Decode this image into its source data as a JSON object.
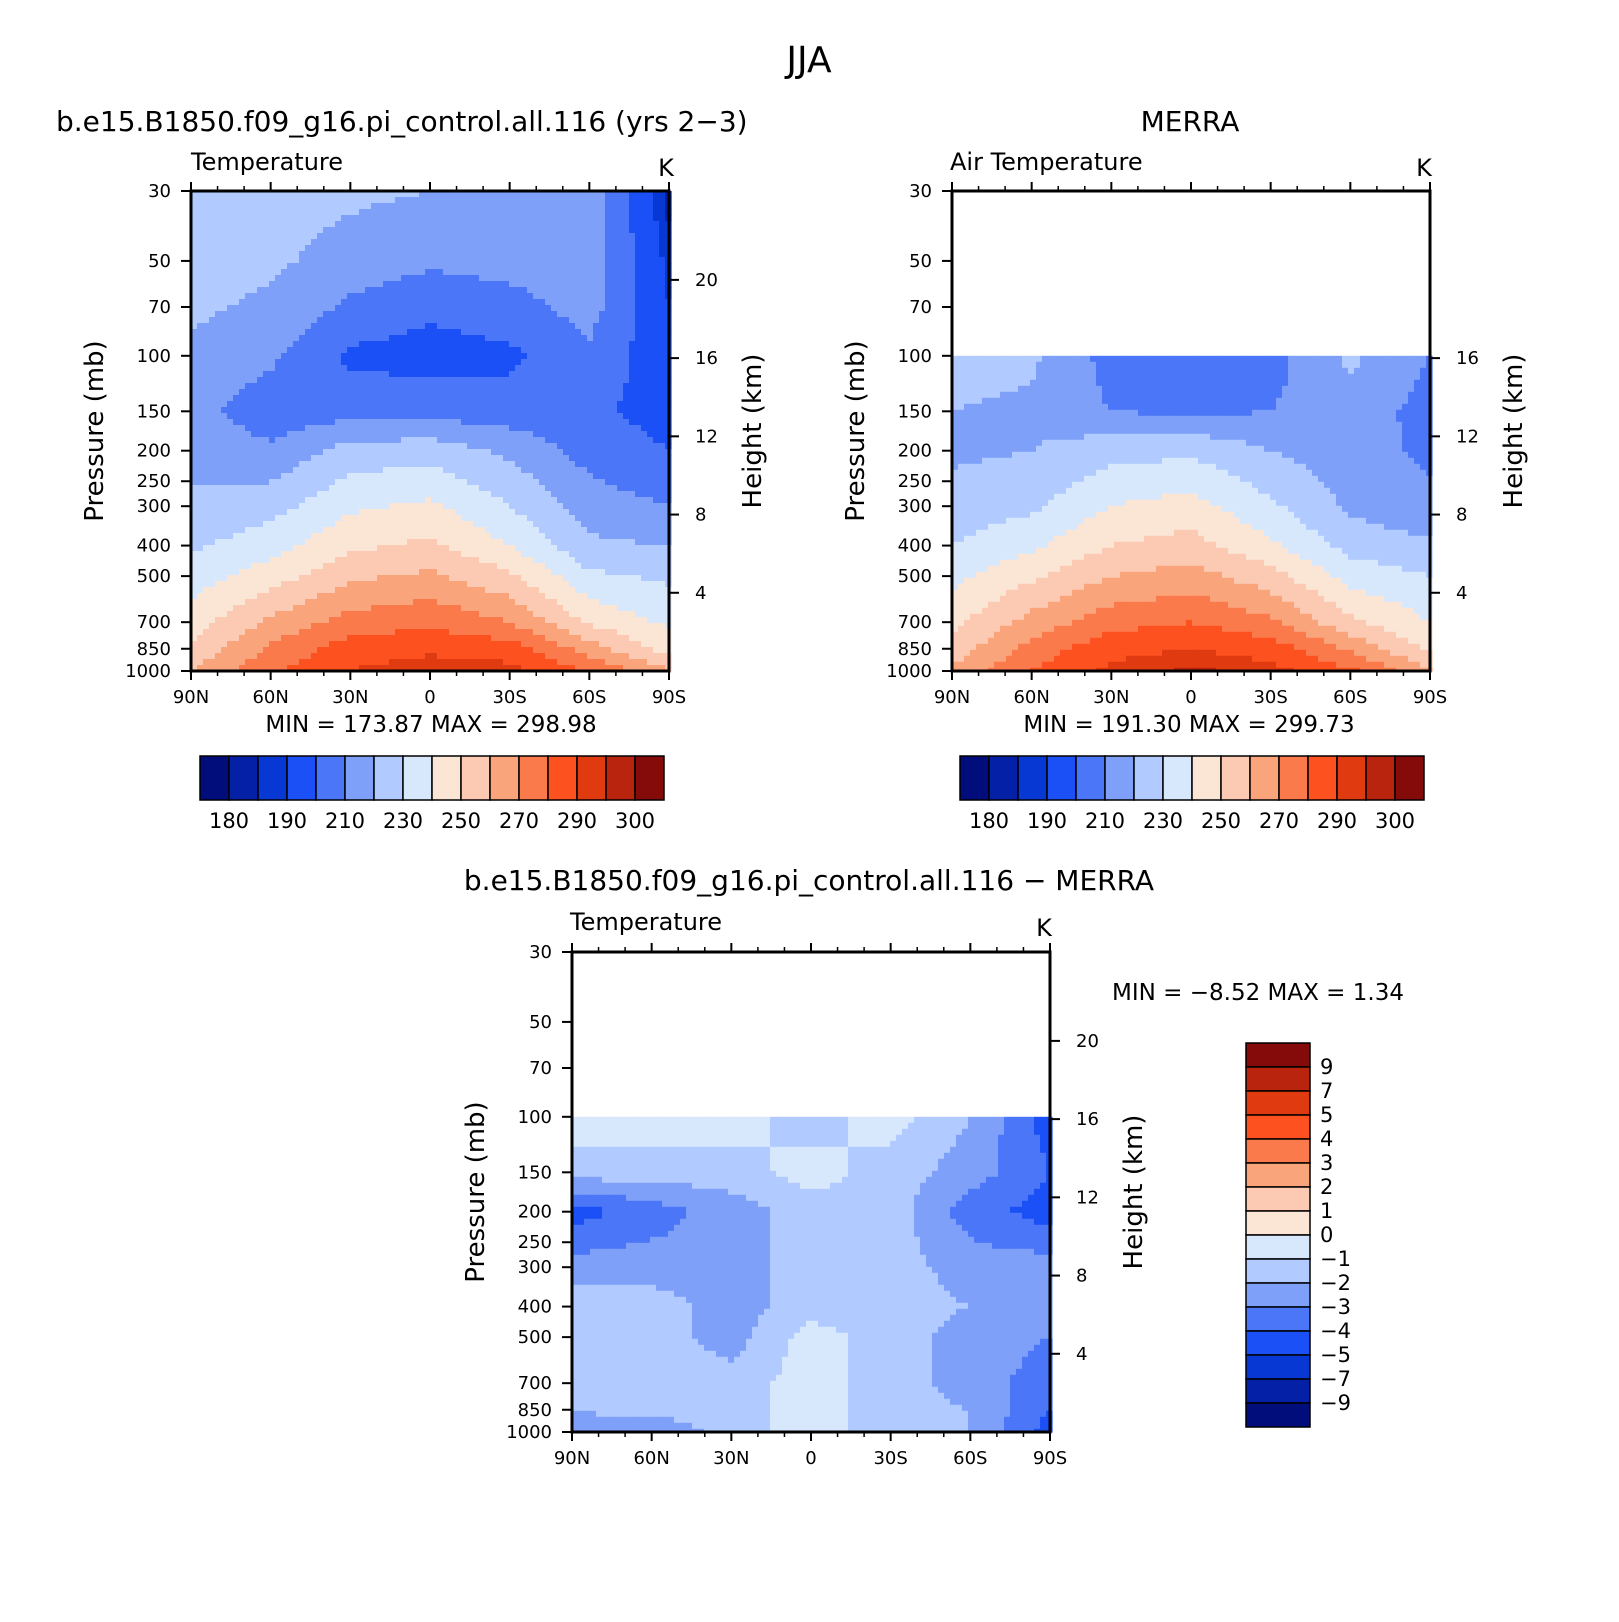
{
  "figure": {
    "title": "JJA"
  },
  "colors": {
    "abs_palette": [
      "#000d7a",
      "#0320a7",
      "#0738d3",
      "#1a50f5",
      "#4a76f7",
      "#7ea0f9",
      "#b1caff",
      "#d8e8fc",
      "#fbe6d6",
      "#fccab2",
      "#f9a47a",
      "#fb7a4c",
      "#fd5120",
      "#e03a10",
      "#b9240e",
      "#850a0a"
    ],
    "diff_palette": [
      "#000d7a",
      "#0320a7",
      "#0738d3",
      "#1a50f5",
      "#4a76f7",
      "#7ea0f9",
      "#b1caff",
      "#d8e8fc",
      "#fbe6d6",
      "#fccab2",
      "#f9a47a",
      "#fb7a4c",
      "#fd5120",
      "#e03a10",
      "#b9240e",
      "#850a0a"
    ]
  },
  "panels": {
    "model": {
      "header": "b.e15.B1850.f09_g16.pi_control.all.116 (yrs 2−3)",
      "left_label": "Temperature",
      "right_label": "K",
      "ylabel": "Pressure (mb)",
      "y2label": "Height (km)",
      "xticks": [
        "90N",
        "60N",
        "30N",
        "0",
        "30S",
        "60S",
        "90S"
      ],
      "yticks": [
        "30",
        "50",
        "70",
        "100",
        "150",
        "200",
        "250",
        "300",
        "400",
        "500",
        "700",
        "850",
        "1000"
      ],
      "y2ticks": [
        "20",
        "16",
        "12",
        "8",
        "4"
      ],
      "minmax": "MIN = 173.87 MAX = 298.98",
      "colorbar_labels": [
        "180",
        "190",
        "210",
        "230",
        "250",
        "270",
        "290",
        "300"
      ]
    },
    "merra": {
      "header": "MERRA",
      "left_label": "Air Temperature",
      "right_label": "K",
      "ylabel": "Pressure (mb)",
      "y2label": "Height (km)",
      "xticks": [
        "90N",
        "60N",
        "30N",
        "0",
        "30S",
        "60S",
        "90S"
      ],
      "yticks": [
        "30",
        "50",
        "70",
        "100",
        "150",
        "200",
        "250",
        "300",
        "400",
        "500",
        "700",
        "850",
        "1000"
      ],
      "y2ticks": [
        "16",
        "12",
        "8",
        "4"
      ],
      "minmax": "MIN = 191.30 MAX = 299.73",
      "colorbar_labels": [
        "180",
        "190",
        "210",
        "230",
        "250",
        "270",
        "290",
        "300"
      ]
    },
    "diff": {
      "header": "b.e15.B1850.f09_g16.pi_control.all.116 − MERRA",
      "left_label": "Temperature",
      "right_label": "K",
      "ylabel": "Pressure (mb)",
      "y2label": "Height (km)",
      "xticks": [
        "90N",
        "60N",
        "30N",
        "0",
        "30S",
        "60S",
        "90S"
      ],
      "yticks": [
        "30",
        "50",
        "70",
        "100",
        "150",
        "200",
        "250",
        "300",
        "400",
        "500",
        "700",
        "850",
        "1000"
      ],
      "y2ticks": [
        "20",
        "16",
        "12",
        "8",
        "4"
      ],
      "minmax": "MIN = −8.52 MAX = 1.34",
      "colorbar_labels": [
        "9",
        "7",
        "5",
        "4",
        "3",
        "2",
        "1",
        "0",
        "−1",
        "−2",
        "−3",
        "−4",
        "−5",
        "−7",
        "−9"
      ]
    }
  },
  "chart_data": [
    {
      "type": "heatmap",
      "title": "b.e15.B1850.f09_g16.pi_control.all.116 (yrs 2−3)",
      "subtitle": "Temperature",
      "units": "K",
      "xlabel": "",
      "ylabel": "Pressure (mb)",
      "y2label": "Height (km)",
      "x": [
        90,
        60,
        30,
        0,
        -30,
        -60,
        -90
      ],
      "y": [
        1000,
        850,
        700,
        500,
        400,
        300,
        200,
        150,
        100,
        70,
        50,
        30
      ],
      "y_scale": "log",
      "ylim": [
        1000,
        30
      ],
      "z": [
        [
          260,
          278,
          290,
          295,
          293,
          280,
          262
        ],
        [
          252,
          272,
          285,
          288,
          285,
          265,
          245
        ],
        [
          245,
          262,
          274,
          278,
          270,
          248,
          238
        ],
        [
          235,
          245,
          258,
          262,
          252,
          232,
          228
        ],
        [
          228,
          236,
          248,
          252,
          240,
          222,
          220
        ],
        [
          222,
          226,
          238,
          242,
          230,
          215,
          210
        ],
        [
          216,
          212,
          224,
          226,
          218,
          206,
          200
        ],
        [
          214,
          204,
          206,
          206,
          204,
          202,
          196
        ],
        [
          218,
          212,
          198,
          196,
          198,
          208,
          192
        ],
        [
          222,
          218,
          208,
          202,
          206,
          214,
          190
        ],
        [
          224,
          222,
          216,
          212,
          214,
          216,
          188
        ],
        [
          226,
          224,
          222,
          220,
          220,
          218,
          182
        ]
      ],
      "min": 173.87,
      "max": 298.98,
      "levels": [
        180,
        185,
        190,
        200,
        210,
        220,
        230,
        240,
        250,
        260,
        270,
        280,
        290,
        295,
        300
      ]
    },
    {
      "type": "heatmap",
      "title": "MERRA",
      "subtitle": "Air Temperature",
      "units": "K",
      "xlabel": "",
      "ylabel": "Pressure (mb)",
      "y2label": "Height (km)",
      "x": [
        90,
        60,
        30,
        0,
        -30,
        -60,
        -90
      ],
      "y": [
        1000,
        850,
        700,
        500,
        400,
        300,
        200,
        150,
        100
      ],
      "y_scale": "log",
      "ylim": [
        1000,
        30
      ],
      "z": [
        [
          262,
          280,
          292,
          296,
          293,
          282,
          262
        ],
        [
          254,
          274,
          287,
          290,
          286,
          268,
          248
        ],
        [
          247,
          264,
          276,
          280,
          272,
          252,
          240
        ],
        [
          237,
          248,
          260,
          264,
          254,
          236,
          230
        ],
        [
          230,
          238,
          250,
          254,
          242,
          226,
          222
        ],
        [
          224,
          228,
          240,
          244,
          232,
          218,
          212
        ],
        [
          218,
          220,
          226,
          228,
          220,
          214,
          208
        ],
        [
          220,
          218,
          210,
          208,
          210,
          216,
          206
        ],
        [
          224,
          222,
          206,
          202,
          206,
          222,
          210
        ]
      ],
      "min": 191.3,
      "max": 299.73,
      "levels": [
        180,
        185,
        190,
        200,
        210,
        220,
        230,
        240,
        250,
        260,
        270,
        280,
        290,
        295,
        300
      ]
    },
    {
      "type": "heatmap",
      "title": "b.e15.B1850.f09_g16.pi_control.all.116 − MERRA",
      "subtitle": "Temperature",
      "units": "K",
      "xlabel": "",
      "ylabel": "Pressure (mb)",
      "y2label": "Height (km)",
      "x": [
        90,
        60,
        30,
        0,
        -30,
        -60,
        -90
      ],
      "y": [
        1000,
        850,
        700,
        500,
        400,
        300,
        200,
        150,
        100
      ],
      "y_scale": "log",
      "ylim": [
        1000,
        30
      ],
      "z": [
        [
          -2.5,
          -3.0,
          -1.5,
          -0.5,
          -1.5,
          -2.0,
          -4.5
        ],
        [
          -2.0,
          -1.5,
          -1.5,
          -0.5,
          -1.5,
          -2.0,
          -4.0
        ],
        [
          -1.5,
          -1.5,
          -1.5,
          -0.5,
          -1.5,
          -2.5,
          -3.5
        ],
        [
          -1.5,
          -1.5,
          -2.5,
          -0.5,
          -1.5,
          -2.5,
          -3.0
        ],
        [
          -1.5,
          -1.5,
          -2.5,
          -1.5,
          -1.5,
          -2.0,
          -2.5
        ],
        [
          -2.5,
          -2.5,
          -2.5,
          -1.5,
          -1.5,
          -2.5,
          -2.5
        ],
        [
          -4.5,
          -3.5,
          -2.5,
          -1.5,
          -1.5,
          -3.5,
          -4.5
        ],
        [
          -1.5,
          -1.5,
          -1.5,
          -0.5,
          -1.5,
          -2.5,
          -4.0
        ],
        [
          -0.5,
          -0.5,
          -0.5,
          -1.5,
          -0.5,
          -2.0,
          -4.5
        ]
      ],
      "min": -8.52,
      "max": 1.34,
      "levels": [
        -9,
        -7,
        -5,
        -4,
        -3,
        -2,
        -1,
        0,
        1,
        2,
        3,
        4,
        5,
        7,
        9
      ]
    }
  ]
}
